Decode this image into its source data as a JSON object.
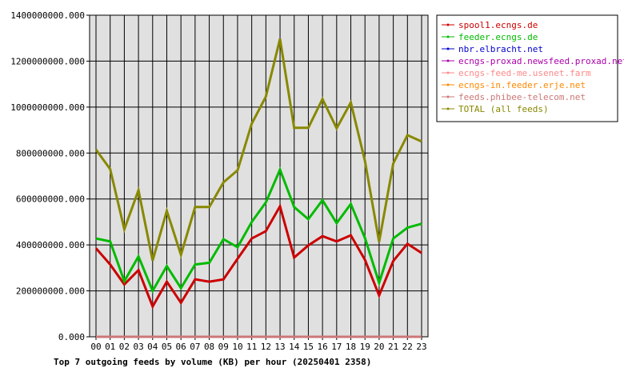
{
  "chart_data": {
    "type": "line",
    "title": "Top 7 outgoing feeds by volume (KB) per hour (20250401 2358)",
    "categories": [
      "00",
      "01",
      "02",
      "03",
      "04",
      "05",
      "06",
      "07",
      "08",
      "09",
      "10",
      "11",
      "12",
      "13",
      "14",
      "15",
      "16",
      "17",
      "18",
      "19",
      "20",
      "21",
      "22",
      "23"
    ],
    "ylim": [
      0,
      1400000000
    ],
    "yticks": [
      0,
      200000000,
      400000000,
      600000000,
      800000000,
      1000000000,
      1200000000,
      1400000000
    ],
    "ytick_labels": [
      "0.000",
      "200000000.000",
      "400000000.000",
      "600000000.000",
      "800000000.000",
      "1000000000.000",
      "1200000000.000",
      "1400000000.000"
    ],
    "grid": true,
    "legend_position": "right",
    "colors": {
      "plot_bg": "#e0e0e0",
      "axis": "#000000",
      "grid": "#000000"
    },
    "series": [
      {
        "name": "spool1.ecngs.de",
        "color": "#cc0000",
        "values": [
          385000000,
          315000000,
          228000000,
          290000000,
          132000000,
          240000000,
          148000000,
          250000000,
          240000000,
          250000000,
          340000000,
          428000000,
          460000000,
          568000000,
          345000000,
          398000000,
          438000000,
          415000000,
          442000000,
          335000000,
          180000000,
          330000000,
          405000000,
          365000000
        ]
      },
      {
        "name": "feeder.ecngs.de",
        "color": "#00bb00",
        "values": [
          428000000,
          415000000,
          242000000,
          350000000,
          200000000,
          308000000,
          212000000,
          315000000,
          322000000,
          425000000,
          390000000,
          500000000,
          585000000,
          728000000,
          565000000,
          512000000,
          595000000,
          495000000,
          578000000,
          430000000,
          235000000,
          428000000,
          475000000,
          492000000
        ]
      },
      {
        "name": "nbr.elbracht.net",
        "color": "#0000cc",
        "values": [
          0,
          0,
          0,
          0,
          0,
          0,
          0,
          0,
          0,
          0,
          0,
          0,
          0,
          0,
          0,
          0,
          0,
          0,
          0,
          0,
          0,
          0,
          0,
          0
        ]
      },
      {
        "name": "ecngs-proxad.newsfeed.proxad.net",
        "color": "#aa00aa",
        "values": [
          0,
          0,
          0,
          0,
          0,
          0,
          0,
          0,
          0,
          0,
          0,
          0,
          0,
          0,
          0,
          0,
          0,
          0,
          0,
          0,
          0,
          0,
          0,
          0
        ]
      },
      {
        "name": "ecngs-feed-me.usenet.farm",
        "color": "#ff8888",
        "values": [
          0,
          0,
          0,
          0,
          0,
          0,
          0,
          0,
          0,
          0,
          0,
          0,
          0,
          0,
          0,
          0,
          0,
          0,
          0,
          0,
          0,
          0,
          0,
          0
        ]
      },
      {
        "name": "ecngs-in.feeder.erje.net",
        "color": "#ff8800",
        "values": [
          0,
          0,
          0,
          0,
          0,
          0,
          0,
          0,
          0,
          0,
          0,
          0,
          0,
          0,
          0,
          0,
          0,
          0,
          0,
          0,
          0,
          0,
          0,
          0
        ]
      },
      {
        "name": "feeds.phibee-telecom.net",
        "color": "#cc7777",
        "values": [
          0,
          0,
          0,
          0,
          0,
          0,
          0,
          0,
          0,
          0,
          0,
          0,
          0,
          0,
          0,
          0,
          0,
          0,
          0,
          0,
          0,
          0,
          0,
          0
        ]
      },
      {
        "name": "TOTAL (all feeds)",
        "color": "#888800",
        "values": [
          815000000,
          730000000,
          468000000,
          638000000,
          332000000,
          548000000,
          357000000,
          565000000,
          565000000,
          672000000,
          725000000,
          928000000,
          1045000000,
          1297000000,
          910000000,
          910000000,
          1035000000,
          908000000,
          1020000000,
          765000000,
          413000000,
          755000000,
          878000000,
          850000000
        ]
      }
    ]
  }
}
